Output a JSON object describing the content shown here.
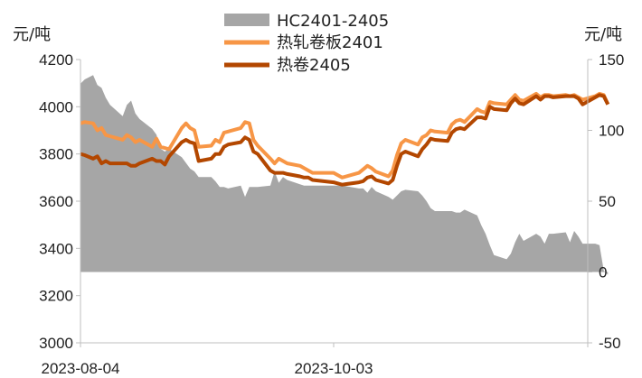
{
  "chart_data": {
    "type": "line",
    "left_unit": "元/吨",
    "right_unit": "元/吨",
    "left_axis": {
      "min": 3000,
      "max": 4200,
      "ticks": [
        "3000",
        "3200",
        "3400",
        "3600",
        "3800",
        "4000",
        "4200"
      ]
    },
    "right_axis": {
      "min": -50,
      "max": 150,
      "ticks": [
        "-50",
        "0",
        "50",
        "100",
        "150"
      ]
    },
    "x_ticks": [
      "2023-08-04",
      "2023-10-03"
    ],
    "legend": [
      "HC2401-2405",
      "热轧卷板2401",
      "热卷2405"
    ],
    "colors": {
      "spread": "#a6a6a6",
      "hc2401": "#f79646",
      "hc2405": "#b34700"
    },
    "series": [
      {
        "name": "HC2401-2405",
        "kind": "area",
        "axis": "right",
        "x": [
          "2023-08-04",
          "2023-08-05",
          "2023-08-07",
          "2023-08-08",
          "2023-08-09",
          "2023-08-10",
          "2023-08-11",
          "2023-08-14",
          "2023-08-15",
          "2023-08-16",
          "2023-08-17",
          "2023-08-18",
          "2023-08-21",
          "2023-08-22",
          "2023-08-23",
          "2023-08-24",
          "2023-08-25",
          "2023-08-28",
          "2023-08-29",
          "2023-08-30",
          "2023-08-31",
          "2023-09-01",
          "2023-09-04",
          "2023-09-05",
          "2023-09-06",
          "2023-09-07",
          "2023-09-08",
          "2023-09-11",
          "2023-09-12",
          "2023-09-13",
          "2023-09-14",
          "2023-09-15",
          "2023-09-18",
          "2023-09-19",
          "2023-09-20",
          "2023-09-21",
          "2023-09-22",
          "2023-09-25",
          "2023-09-26",
          "2023-09-27",
          "2023-09-28",
          "2023-10-03",
          "2023-10-05",
          "2023-10-09",
          "2023-10-10",
          "2023-10-11",
          "2023-10-12",
          "2023-10-13",
          "2023-10-16",
          "2023-10-17",
          "2023-10-18",
          "2023-10-19",
          "2023-10-20",
          "2023-10-23",
          "2023-10-24",
          "2023-10-25",
          "2023-10-26",
          "2023-10-27",
          "2023-10-30",
          "2023-10-31",
          "2023-11-01",
          "2023-11-02",
          "2023-11-03",
          "2023-11-06",
          "2023-11-07",
          "2023-11-08",
          "2023-11-09",
          "2023-11-10",
          "2023-11-13",
          "2023-11-14",
          "2023-11-15",
          "2023-11-16",
          "2023-11-17",
          "2023-11-20",
          "2023-11-21",
          "2023-11-22",
          "2023-11-23",
          "2023-11-24",
          "2023-11-27",
          "2023-11-28",
          "2023-11-29",
          "2023-11-30",
          "2023-12-01",
          "2023-12-04",
          "2023-12-05",
          "2023-12-06",
          "2023-12-07"
        ],
        "values": [
          133,
          136,
          139,
          132,
          130,
          123,
          118,
          110,
          118,
          121,
          112,
          108,
          101,
          97,
          87,
          85,
          87,
          81,
          77,
          73,
          71,
          67,
          67,
          64,
          60,
          60,
          59,
          61,
          53,
          60,
          60,
          60,
          61,
          71,
          63,
          67,
          65,
          62,
          61,
          61,
          61,
          61,
          61,
          59,
          59,
          56,
          60,
          57,
          53,
          51,
          54,
          57,
          58,
          57,
          54,
          50,
          45,
          43,
          43,
          43,
          42,
          42,
          44,
          40,
          33,
          27,
          19,
          12,
          9,
          13,
          21,
          27,
          22,
          27,
          25,
          20,
          27,
          27,
          28,
          21,
          29,
          25,
          20,
          20,
          19,
          1,
          -2
        ]
      },
      {
        "name": "热轧卷板2401",
        "kind": "line",
        "axis": "left",
        "x": [
          "2023-08-04",
          "2023-08-05",
          "2023-08-07",
          "2023-08-08",
          "2023-08-09",
          "2023-08-10",
          "2023-08-11",
          "2023-08-14",
          "2023-08-15",
          "2023-08-16",
          "2023-08-17",
          "2023-08-18",
          "2023-08-21",
          "2023-08-22",
          "2023-08-23",
          "2023-08-24",
          "2023-08-25",
          "2023-08-28",
          "2023-08-29",
          "2023-08-30",
          "2023-08-31",
          "2023-09-01",
          "2023-09-04",
          "2023-09-05",
          "2023-09-06",
          "2023-09-07",
          "2023-09-08",
          "2023-09-11",
          "2023-09-12",
          "2023-09-13",
          "2023-09-14",
          "2023-09-15",
          "2023-09-18",
          "2023-09-19",
          "2023-09-20",
          "2023-09-21",
          "2023-09-22",
          "2023-09-25",
          "2023-09-26",
          "2023-09-27",
          "2023-09-28",
          "2023-10-03",
          "2023-10-05",
          "2023-10-09",
          "2023-10-10",
          "2023-10-11",
          "2023-10-12",
          "2023-10-13",
          "2023-10-16",
          "2023-10-17",
          "2023-10-18",
          "2023-10-19",
          "2023-10-20",
          "2023-10-23",
          "2023-10-24",
          "2023-10-25",
          "2023-10-26",
          "2023-10-27",
          "2023-10-30",
          "2023-10-31",
          "2023-11-01",
          "2023-11-02",
          "2023-11-03",
          "2023-11-06",
          "2023-11-07",
          "2023-11-08",
          "2023-11-09",
          "2023-11-10",
          "2023-11-13",
          "2023-11-14",
          "2023-11-15",
          "2023-11-16",
          "2023-11-17",
          "2023-11-20",
          "2023-11-21",
          "2023-11-22",
          "2023-11-23",
          "2023-11-24",
          "2023-11-27",
          "2023-11-28",
          "2023-11-29",
          "2023-11-30",
          "2023-12-01",
          "2023-12-04",
          "2023-12-05",
          "2023-12-06",
          "2023-12-07"
        ],
        "values": [
          3930,
          3935,
          3930,
          3900,
          3910,
          3880,
          3875,
          3860,
          3880,
          3870,
          3850,
          3860,
          3830,
          3865,
          3830,
          3825,
          3820,
          3910,
          3930,
          3910,
          3900,
          3830,
          3835,
          3860,
          3850,
          3890,
          3895,
          3910,
          3935,
          3930,
          3860,
          3835,
          3780,
          3760,
          3780,
          3770,
          3760,
          3750,
          3740,
          3730,
          3720,
          3720,
          3700,
          3720,
          3735,
          3750,
          3740,
          3725,
          3705,
          3730,
          3795,
          3845,
          3860,
          3840,
          3870,
          3880,
          3900,
          3895,
          3890,
          3925,
          3940,
          3945,
          3935,
          3990,
          3980,
          3975,
          4020,
          4015,
          4010,
          4030,
          4050,
          4030,
          4025,
          4055,
          4040,
          4050,
          4050,
          4045,
          4050,
          4045,
          4050,
          4040,
          4030,
          4045,
          4055,
          4050,
          4010
        ]
      },
      {
        "name": "热卷2405",
        "kind": "line",
        "axis": "left",
        "x": [
          "2023-08-04",
          "2023-08-05",
          "2023-08-07",
          "2023-08-08",
          "2023-08-09",
          "2023-08-10",
          "2023-08-11",
          "2023-08-14",
          "2023-08-15",
          "2023-08-16",
          "2023-08-17",
          "2023-08-18",
          "2023-08-21",
          "2023-08-22",
          "2023-08-23",
          "2023-08-24",
          "2023-08-25",
          "2023-08-28",
          "2023-08-29",
          "2023-08-30",
          "2023-08-31",
          "2023-09-01",
          "2023-09-04",
          "2023-09-05",
          "2023-09-06",
          "2023-09-07",
          "2023-09-08",
          "2023-09-11",
          "2023-09-12",
          "2023-09-13",
          "2023-09-14",
          "2023-09-15",
          "2023-09-18",
          "2023-09-19",
          "2023-09-20",
          "2023-09-21",
          "2023-09-22",
          "2023-09-25",
          "2023-09-26",
          "2023-09-27",
          "2023-09-28",
          "2023-10-03",
          "2023-10-05",
          "2023-10-09",
          "2023-10-10",
          "2023-10-11",
          "2023-10-12",
          "2023-10-13",
          "2023-10-16",
          "2023-10-17",
          "2023-10-18",
          "2023-10-19",
          "2023-10-20",
          "2023-10-23",
          "2023-10-24",
          "2023-10-25",
          "2023-10-26",
          "2023-10-27",
          "2023-10-30",
          "2023-10-31",
          "2023-11-01",
          "2023-11-02",
          "2023-11-03",
          "2023-11-06",
          "2023-11-07",
          "2023-11-08",
          "2023-11-09",
          "2023-11-10",
          "2023-11-13",
          "2023-11-14",
          "2023-11-15",
          "2023-11-16",
          "2023-11-17",
          "2023-11-20",
          "2023-11-21",
          "2023-11-22",
          "2023-11-23",
          "2023-11-24",
          "2023-11-27",
          "2023-11-28",
          "2023-11-29",
          "2023-11-30",
          "2023-12-01",
          "2023-12-04",
          "2023-12-05",
          "2023-12-06",
          "2023-12-07"
        ],
        "values": [
          3800,
          3795,
          3780,
          3790,
          3760,
          3770,
          3760,
          3760,
          3760,
          3750,
          3750,
          3760,
          3780,
          3770,
          3770,
          3755,
          3790,
          3850,
          3860,
          3850,
          3845,
          3770,
          3780,
          3800,
          3800,
          3830,
          3840,
          3850,
          3870,
          3860,
          3810,
          3800,
          3730,
          3720,
          3720,
          3720,
          3715,
          3705,
          3700,
          3700,
          3690,
          3680,
          3670,
          3680,
          3685,
          3700,
          3705,
          3690,
          3675,
          3690,
          3750,
          3800,
          3810,
          3790,
          3820,
          3840,
          3865,
          3860,
          3855,
          3890,
          3905,
          3910,
          3905,
          3955,
          3955,
          3950,
          4000,
          3990,
          3985,
          4015,
          4035,
          4015,
          4010,
          4045,
          4030,
          4045,
          4045,
          4040,
          4045,
          4045,
          4045,
          4035,
          4010,
          4040,
          4050,
          4045,
          4010
        ]
      }
    ]
  }
}
